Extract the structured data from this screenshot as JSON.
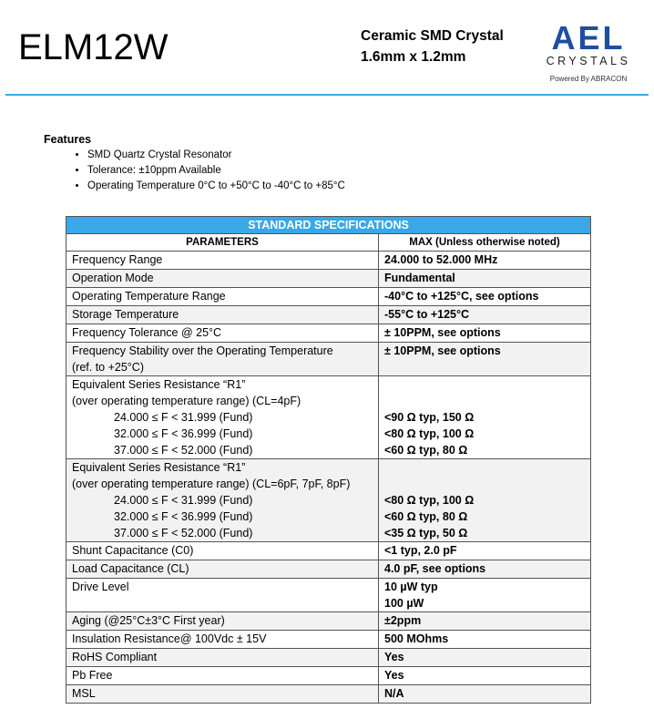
{
  "header": {
    "part": "ELM12W",
    "subtitle1": "Ceramic SMD Crystal",
    "subtitle2": "1.6mm x 1.2mm",
    "logo_main": "AEL",
    "logo_sub": "CRYSTALS",
    "logo_powered": "Powered By ABRACON",
    "accent": "#3aa7e6"
  },
  "features": {
    "title": "Features",
    "items": [
      "SMD Quartz Crystal Resonator",
      "Tolerance: ±10ppm Available",
      "Operating Temperature 0°C to +50°C to -40°C to +85°C"
    ]
  },
  "table": {
    "banner": "STANDARD SPECIFICATIONS",
    "col1": "PARAMETERS",
    "col2": "MAX (Unless otherwise noted)",
    "rows": [
      {
        "p": [
          "Frequency Range"
        ],
        "v": [
          "24.000 to 52.000 MHz"
        ]
      },
      {
        "p": [
          "Operation Mode"
        ],
        "v": [
          "Fundamental"
        ]
      },
      {
        "p": [
          "Operating Temperature Range"
        ],
        "v": [
          "-40°C to +125°C, see options"
        ]
      },
      {
        "p": [
          "Storage Temperature"
        ],
        "v": [
          "-55°C to +125°C"
        ]
      },
      {
        "p": [
          "Frequency Tolerance @ 25°C"
        ],
        "v": [
          "± 10PPM, see options"
        ]
      },
      {
        "p": [
          "Frequency Stability over the Operating Temperature",
          "(ref. to +25°C)"
        ],
        "v": [
          "± 10PPM, see options",
          ""
        ]
      },
      {
        "p": [
          "Equivalent Series Resistance “R1”",
          "(over operating temperature range) (CL=4pF)",
          "24.000 ≤ F < 31.999 (Fund)",
          "32.000 ≤ F < 36.999 (Fund)",
          "37.000 ≤ F < 52.000 (Fund)"
        ],
        "v": [
          "",
          "",
          "<90 Ω typ, 150 Ω",
          "<80 Ω typ, 100 Ω",
          "<60 Ω typ, 80 Ω"
        ]
      },
      {
        "p": [
          "Equivalent Series Resistance “R1”",
          "(over operating temperature range) (CL=6pF, 7pF, 8pF)",
          "24.000 ≤ F < 31.999 (Fund)",
          "32.000 ≤ F < 36.999 (Fund)",
          "37.000 ≤ F < 52.000 (Fund)"
        ],
        "v": [
          "",
          "",
          "<80 Ω typ, 100 Ω",
          "<60 Ω typ, 80 Ω",
          "<35 Ω typ, 50 Ω"
        ]
      },
      {
        "p": [
          "Shunt Capacitance (C0)"
        ],
        "v": [
          "<1 typ, 2.0 pF"
        ]
      },
      {
        "p": [
          "Load Capacitance (CL)"
        ],
        "v": [
          "4.0 pF, see options"
        ]
      },
      {
        "p": [
          "Drive Level",
          ""
        ],
        "v": [
          "10 µW typ",
          "100  µW"
        ]
      },
      {
        "p": [
          "Aging (@25°C±3°C First year)"
        ],
        "v": [
          "±2ppm"
        ]
      },
      {
        "p": [
          "Insulation Resistance@ 100Vdc ± 15V"
        ],
        "v": [
          "500 MOhms"
        ]
      },
      {
        "p": [
          "RoHS Compliant"
        ],
        "v": [
          "Yes"
        ]
      },
      {
        "p": [
          "Pb Free"
        ],
        "v": [
          "Yes"
        ]
      },
      {
        "p": [
          "MSL"
        ],
        "v": [
          "N/A"
        ]
      }
    ]
  }
}
